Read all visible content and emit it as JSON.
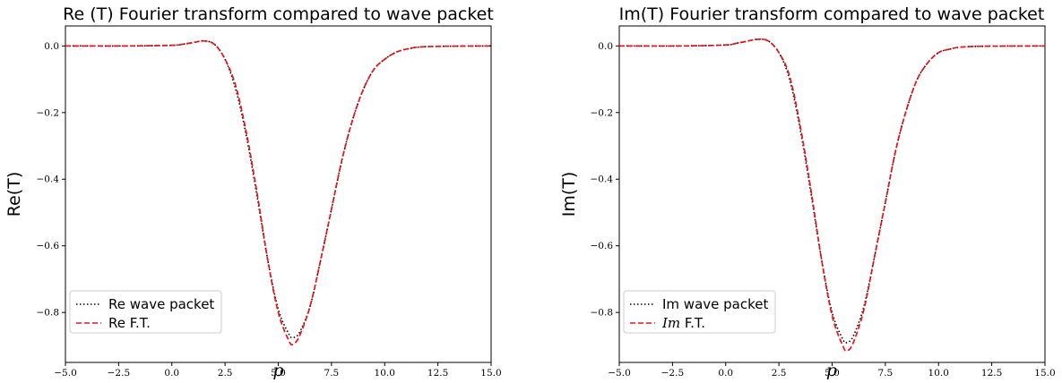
{
  "chart_data": [
    {
      "type": "line",
      "title": "Re (T) Fourier transform compared to wave packet",
      "xlabel": "p",
      "ylabel": "Re(T)",
      "xlim": [
        -5,
        15
      ],
      "ylim": [
        -0.95,
        0.06
      ],
      "xticks": [
        "−5.0",
        "−2.5",
        "0.0",
        "2.5",
        "5.0",
        "7.5",
        "10.0",
        "12.5",
        "15.0"
      ],
      "yticks": [
        "0.0",
        "−0.2",
        "−0.4",
        "−0.6",
        "−0.8"
      ],
      "grid": false,
      "legend_position": "lower-left",
      "series": [
        {
          "name": "Re wave packet",
          "color": "#000000",
          "style": "dotted",
          "x": [
            -5,
            -2,
            0,
            0.5,
            1,
            1.5,
            2,
            2.5,
            3,
            3.5,
            4,
            4.5,
            5,
            5.5,
            5.7,
            6,
            6.5,
            7,
            7.5,
            8,
            8.5,
            9,
            9.5,
            10,
            10.5,
            11,
            12,
            15
          ],
          "y": [
            0,
            0,
            0.002,
            0.005,
            0.01,
            0.015,
            0.005,
            -0.04,
            -0.13,
            -0.27,
            -0.45,
            -0.64,
            -0.79,
            -0.865,
            -0.875,
            -0.86,
            -0.78,
            -0.64,
            -0.49,
            -0.34,
            -0.22,
            -0.13,
            -0.07,
            -0.04,
            -0.02,
            -0.01,
            -0.002,
            0
          ]
        },
        {
          "name": "Re F.T.",
          "color": "#e8141b",
          "style": "dashed",
          "x": [
            -5,
            -2,
            0,
            0.5,
            1,
            1.5,
            2,
            2.5,
            3,
            3.5,
            4,
            4.5,
            5,
            5.5,
            5.7,
            6,
            6.5,
            7,
            7.5,
            8,
            8.5,
            9,
            9.5,
            10,
            10.5,
            11,
            12,
            15
          ],
          "y": [
            0,
            0,
            0.002,
            0.005,
            0.01,
            0.015,
            0.005,
            -0.04,
            -0.12,
            -0.26,
            -0.44,
            -0.64,
            -0.8,
            -0.885,
            -0.895,
            -0.87,
            -0.78,
            -0.64,
            -0.49,
            -0.34,
            -0.22,
            -0.13,
            -0.07,
            -0.04,
            -0.02,
            -0.01,
            -0.002,
            0
          ]
        }
      ]
    },
    {
      "type": "line",
      "title": "Im(T) Fourier transform compared to wave packet",
      "xlabel": "p",
      "ylabel": "Im(T)",
      "xlim": [
        -5,
        15
      ],
      "ylim": [
        -0.95,
        0.06
      ],
      "xticks": [
        "−5.0",
        "−2.5",
        "0.0",
        "2.5",
        "5.0",
        "7.5",
        "10.0",
        "12.5",
        "15.0"
      ],
      "yticks": [
        "0.0",
        "−0.2",
        "−0.4",
        "−0.6",
        "−0.8"
      ],
      "grid": false,
      "legend_position": "lower-left",
      "series": [
        {
          "name": "Im wave packet",
          "color": "#000000",
          "style": "dotted",
          "x": [
            -5,
            -2,
            0,
            0.5,
            1,
            1.5,
            2,
            2.5,
            3,
            3.5,
            4,
            4.5,
            5,
            5.5,
            5.7,
            6,
            6.5,
            7,
            7.5,
            8,
            8.5,
            9,
            9.5,
            10,
            10.5,
            11,
            12,
            15
          ],
          "y": [
            0,
            0,
            0.003,
            0.008,
            0.014,
            0.02,
            0.015,
            -0.02,
            -0.1,
            -0.25,
            -0.44,
            -0.64,
            -0.8,
            -0.88,
            -0.89,
            -0.87,
            -0.78,
            -0.63,
            -0.47,
            -0.31,
            -0.19,
            -0.1,
            -0.05,
            -0.02,
            -0.01,
            -0.004,
            -0.001,
            0
          ]
        },
        {
          "name": "Im F.T.",
          "name_prefix": "Im",
          "name_suffix": " F.T.",
          "color": "#e8141b",
          "style": "dashed",
          "x": [
            -5,
            -2,
            0,
            0.5,
            1,
            1.5,
            2,
            2.5,
            3,
            3.5,
            4,
            4.5,
            5,
            5.5,
            5.7,
            6,
            6.5,
            7,
            7.5,
            8,
            8.5,
            9,
            9.5,
            10,
            10.5,
            11,
            12,
            15
          ],
          "y": [
            0,
            0,
            0.003,
            0.008,
            0.014,
            0.02,
            0.015,
            -0.02,
            -0.09,
            -0.24,
            -0.43,
            -0.64,
            -0.81,
            -0.9,
            -0.915,
            -0.89,
            -0.79,
            -0.63,
            -0.47,
            -0.31,
            -0.19,
            -0.1,
            -0.05,
            -0.02,
            -0.01,
            -0.004,
            -0.001,
            0
          ]
        }
      ]
    }
  ]
}
